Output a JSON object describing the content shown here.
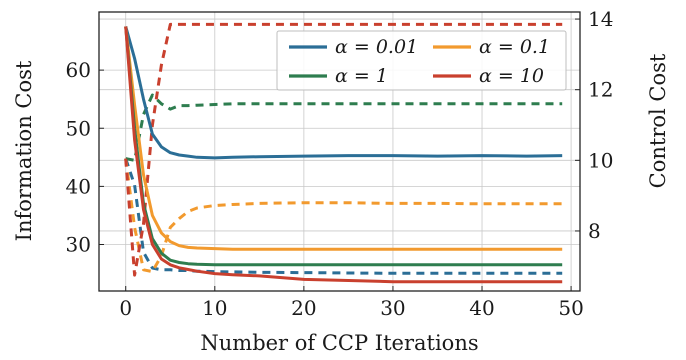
{
  "chart_data": {
    "type": "line",
    "xlabel": "Number of CCP Iterations",
    "ylabel_left": "Information Cost",
    "ylabel_right": "Control Cost",
    "xlim": [
      -3,
      51
    ],
    "xticks": [
      0,
      10,
      20,
      30,
      40,
      50
    ],
    "ylim_left": [
      22,
      70
    ],
    "yticks_left": [
      30,
      40,
      50,
      60
    ],
    "ylim_right": [
      6.3,
      14.2
    ],
    "yticks_right": [
      8,
      10,
      12,
      14
    ],
    "grid": true,
    "legend": {
      "placement": "top-right",
      "columns": 2
    },
    "line_styles": {
      "Information Cost": "solid",
      "Control Cost": "dashed"
    },
    "x": [
      0,
      1,
      2,
      3,
      4,
      5,
      6,
      7,
      8,
      10,
      12,
      15,
      20,
      25,
      30,
      35,
      40,
      45,
      49
    ],
    "series": [
      {
        "name": "α = 0.01",
        "color": "#2b6e96",
        "information_cost": [
          67.5,
          62,
          55,
          49,
          46.8,
          45.8,
          45.4,
          45.2,
          45.0,
          44.9,
          45.0,
          45.1,
          45.2,
          45.3,
          45.3,
          45.2,
          45.3,
          45.2,
          45.3
        ],
        "control_cost": [
          10.05,
          9.3,
          7.4,
          6.95,
          6.9,
          6.9,
          6.88,
          6.88,
          6.86,
          6.85,
          6.84,
          6.83,
          6.82,
          6.81,
          6.8,
          6.8,
          6.8,
          6.8,
          6.8
        ]
      },
      {
        "name": "α = 0.1",
        "color": "#f29a2e",
        "information_cost": [
          67.5,
          54,
          42,
          35,
          32,
          30.5,
          29.8,
          29.5,
          29.4,
          29.3,
          29.2,
          29.2,
          29.2,
          29.2,
          29.2,
          29.2,
          29.2,
          29.2,
          29.2
        ],
        "control_cost": [
          10.05,
          8.1,
          6.9,
          6.85,
          7.3,
          8.1,
          8.35,
          8.55,
          8.65,
          8.72,
          8.75,
          8.78,
          8.8,
          8.8,
          8.78,
          8.78,
          8.77,
          8.77,
          8.77
        ]
      },
      {
        "name": "α = 1",
        "color": "#2e7d4f",
        "information_cost": [
          67.5,
          50,
          37,
          31,
          28.5,
          27.3,
          26.9,
          26.7,
          26.6,
          26.5,
          26.5,
          26.5,
          26.5,
          26.5,
          26.5,
          26.5,
          26.5,
          26.5,
          26.5
        ],
        "control_cost": [
          10.05,
          10.0,
          11.3,
          11.85,
          11.6,
          11.45,
          11.55,
          11.55,
          11.56,
          11.58,
          11.6,
          11.6,
          11.6,
          11.6,
          11.6,
          11.6,
          11.6,
          11.6,
          11.6
        ]
      },
      {
        "name": "α = 10",
        "color": "#c9402e",
        "information_cost": [
          67.5,
          48,
          36,
          30,
          27.5,
          26.5,
          26.0,
          25.7,
          25.4,
          25.0,
          24.8,
          24.6,
          24.0,
          23.8,
          23.6,
          23.6,
          23.6,
          23.6,
          23.6
        ],
        "control_cost": [
          10.05,
          6.75,
          8.2,
          11.0,
          12.7,
          13.85,
          13.85,
          13.85,
          13.85,
          13.85,
          13.85,
          13.85,
          13.85,
          13.85,
          13.85,
          13.85,
          13.85,
          13.85,
          13.85
        ]
      }
    ]
  }
}
